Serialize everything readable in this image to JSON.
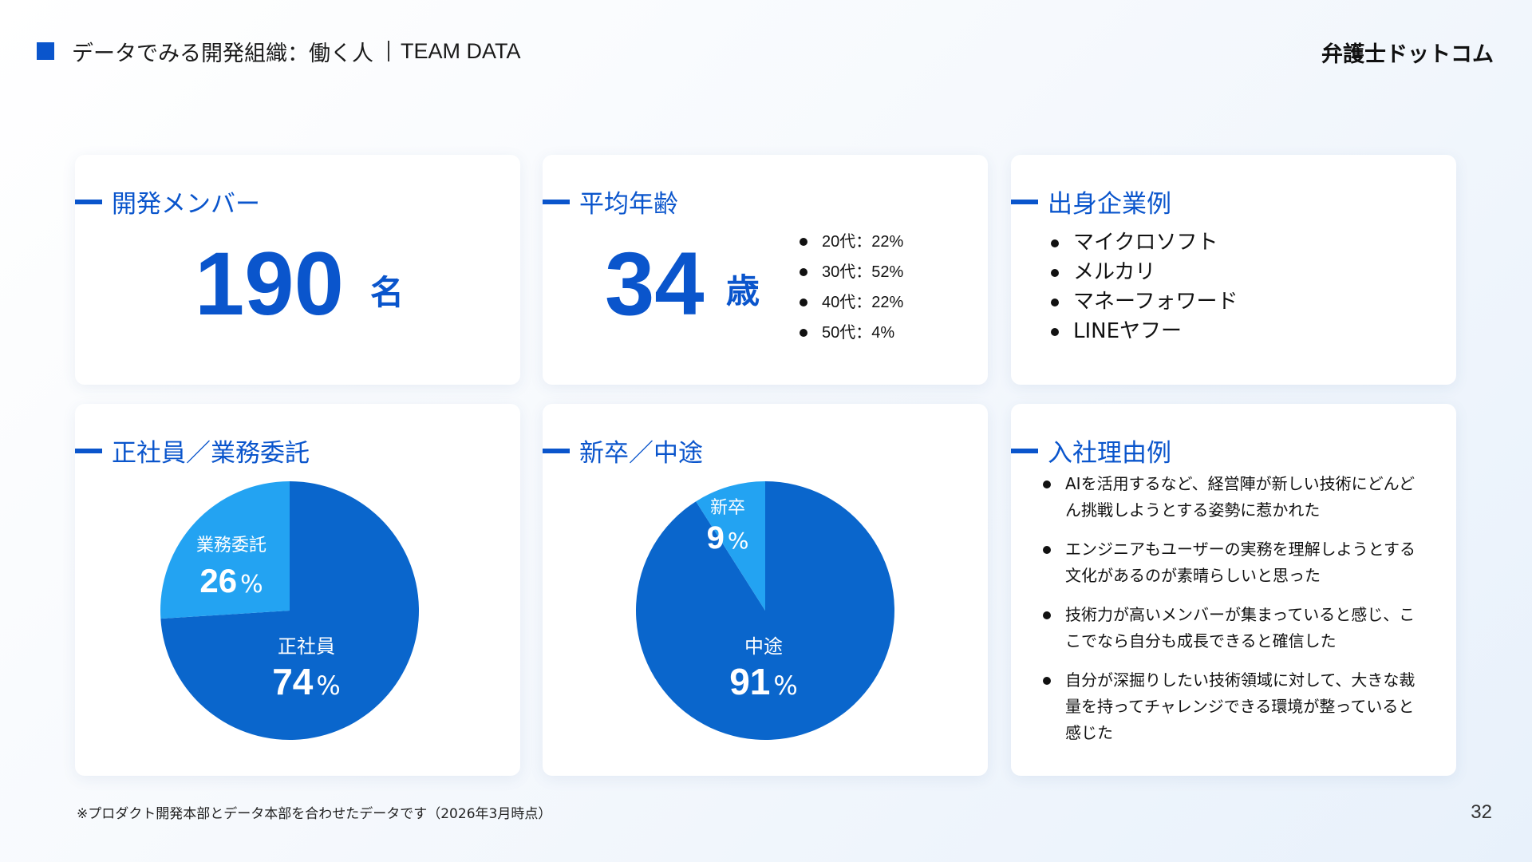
{
  "header": {
    "title": "データでみる開発組織：働く人",
    "subtitle": "TEAM DATA",
    "logo": "弁護士ドットコム"
  },
  "members": {
    "title": "開発メンバー",
    "value": "190",
    "unit": "名"
  },
  "age": {
    "title": "平均年齢",
    "value": "34",
    "unit": "歳",
    "breakdown": [
      "20代：22%",
      "30代：52%",
      "40代：22%",
      "50代：4%"
    ]
  },
  "companies": {
    "title": "出身企業例",
    "items": [
      "マイクロソフト",
      "メルカリ",
      "マネーフォワード",
      "LINEヤフー"
    ]
  },
  "employment": {
    "title": "正社員／業務委託"
  },
  "hire": {
    "title": "新卒／中途"
  },
  "reasons": {
    "title": "入社理由例",
    "items": [
      "AIを活用するなど、経営陣が新しい技術にどんどん挑戦しようとする姿勢に惹かれた",
      "エンジニアもユーザーの実務を理解しようとする文化があるのが素晴らしいと思った",
      "技術力が高いメンバーが集まっていると感じ、ここでなら自分も成長できると確信した",
      "自分が深掘りしたい技術領域に対して、大きな裁量を持ってチャレンジできる環境が整っていると感じた"
    ]
  },
  "chart_data": [
    {
      "type": "pie",
      "categories": [
        "正社員",
        "業務委託"
      ],
      "values": [
        74,
        26
      ],
      "colors": [
        "#0a66cc",
        "#23a3f2"
      ],
      "unit": "%"
    },
    {
      "type": "pie",
      "categories": [
        "中途",
        "新卒"
      ],
      "values": [
        91,
        9
      ],
      "colors": [
        "#0a66cc",
        "#23a3f2"
      ],
      "unit": "%"
    }
  ],
  "footnote": "※プロダクト開発本部とデータ本部を合わせたデータです（2026年3月時点）",
  "page_number": "32",
  "colors": {
    "accent": "#0a55cc",
    "pie_main": "#0a66cc",
    "pie_sub": "#23a3f2"
  }
}
